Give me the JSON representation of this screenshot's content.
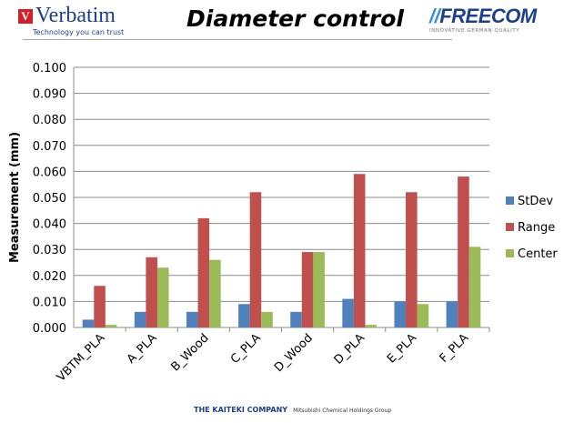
{
  "header": {
    "title": "Diameter control",
    "left_logo": {
      "name": "Verbatim",
      "tagline": "Technology you can trust"
    },
    "right_logo": {
      "name": "FREECOM",
      "tagline": "INNOVATIVE GERMAN QUALITY"
    }
  },
  "footer": {
    "company": "THE KAITEKI COMPANY",
    "group": "Mitsubishi Chemical Holdings Group"
  },
  "chart_data": {
    "type": "bar",
    "title": "Diameter control",
    "xlabel": "",
    "ylabel": "Measurement (mm)",
    "ylim": [
      0,
      0.1
    ],
    "yticks": [
      "0.000",
      "0.010",
      "0.020",
      "0.030",
      "0.040",
      "0.050",
      "0.060",
      "0.070",
      "0.080",
      "0.090",
      "0.100"
    ],
    "grid": true,
    "legend_position": "right",
    "categories": [
      "VBTM_PLA",
      "A_PLA",
      "B_Wood",
      "C_PLA",
      "D_Wood",
      "D_PLA",
      "E_PLA",
      "F_PLA"
    ],
    "series": [
      {
        "name": "StDev",
        "color": "#4f81bd",
        "values": [
          0.003,
          0.006,
          0.006,
          0.009,
          0.006,
          0.011,
          0.01,
          0.01
        ]
      },
      {
        "name": "Range",
        "color": "#c0504d",
        "values": [
          0.016,
          0.027,
          0.042,
          0.052,
          0.029,
          0.059,
          0.052,
          0.058
        ]
      },
      {
        "name": "Center",
        "color": "#9bbb59",
        "values": [
          0.001,
          0.023,
          0.026,
          0.006,
          0.029,
          0.001,
          0.009,
          0.031
        ]
      }
    ]
  }
}
